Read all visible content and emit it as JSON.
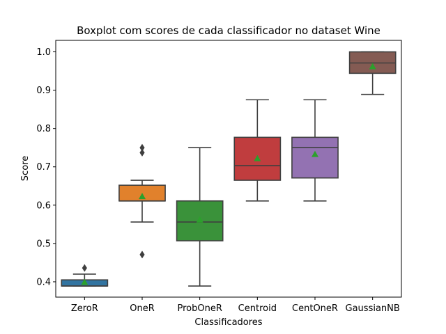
{
  "chart_data": {
    "type": "boxplot",
    "title": "Boxplot com scores de cada classificador no dataset Wine",
    "xlabel": "Classificadores",
    "ylabel": "Score",
    "ylim": [
      0.36,
      1.03
    ],
    "yticks": [
      0.4,
      0.5,
      0.6,
      0.7,
      0.8,
      0.9,
      1.0
    ],
    "ytick_labels": [
      "0.4",
      "0.5",
      "0.6",
      "0.7",
      "0.8",
      "0.9",
      "1.0"
    ],
    "grid": false,
    "series": [
      {
        "category": "ZeroR",
        "color": "#3274a1",
        "whisker_low": 0.389,
        "q1": 0.389,
        "median": 0.389,
        "q3": 0.405,
        "whisker_high": 0.42,
        "mean": 0.399,
        "outliers": [
          0.436
        ]
      },
      {
        "category": "OneR",
        "color": "#e1812c",
        "whisker_low": 0.556,
        "q1": 0.611,
        "median": 0.611,
        "q3": 0.652,
        "whisker_high": 0.665,
        "mean": 0.623,
        "outliers": [
          0.471,
          0.737,
          0.75
        ]
      },
      {
        "category": "ProbOneR",
        "color": "#3a923a",
        "whisker_low": 0.389,
        "q1": 0.507,
        "median": 0.556,
        "q3": 0.611,
        "whisker_high": 0.75,
        "mean": 0.562,
        "outliers": []
      },
      {
        "category": "Centroid",
        "color": "#c03d3e",
        "whisker_low": 0.611,
        "q1": 0.665,
        "median": 0.703,
        "q3": 0.777,
        "whisker_high": 0.875,
        "mean": 0.722,
        "outliers": []
      },
      {
        "category": "CentOneR",
        "color": "#9372b2",
        "whisker_low": 0.611,
        "q1": 0.671,
        "median": 0.75,
        "q3": 0.777,
        "whisker_high": 0.875,
        "mean": 0.733,
        "outliers": []
      },
      {
        "category": "GaussianNB",
        "color": "#845b53",
        "whisker_low": 0.889,
        "q1": 0.944,
        "median": 0.971,
        "q3": 1.0,
        "whisker_high": 1.0,
        "mean": 0.962,
        "outliers": []
      }
    ],
    "mean_marker_color": "#2ca02c",
    "line_color": "#3f3f3f"
  }
}
